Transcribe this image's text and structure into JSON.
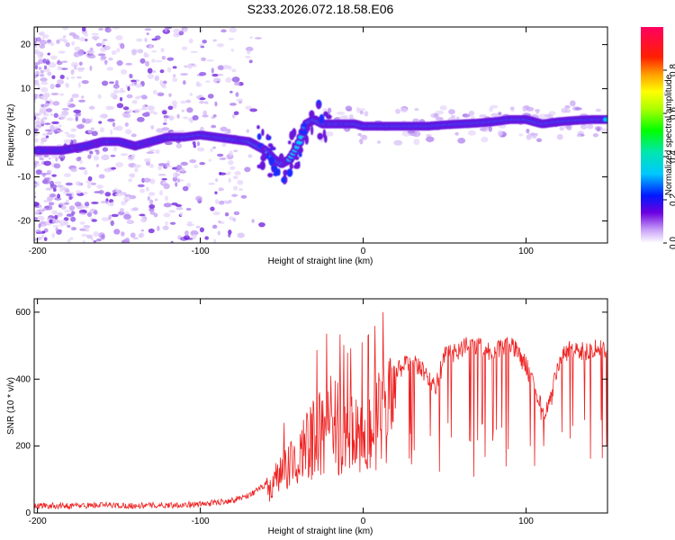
{
  "title": "S233.2026.072.18.58.E06",
  "chart_data": [
    {
      "type": "heatmap",
      "title": "S233.2026.072.18.58.E06",
      "xlabel": "Height of straight line (km)",
      "ylabel": "Frequency (Hz)",
      "xlim": [
        -202,
        150
      ],
      "ylim": [
        -25,
        24
      ],
      "xticks": [
        -200,
        -100,
        0,
        100
      ],
      "yticks": [
        -20,
        -10,
        0,
        10,
        20
      ],
      "colorbar": {
        "label": "Normalized spectral amplitude",
        "range": [
          0,
          1
        ],
        "ticks": [
          0.0,
          0.2,
          0.4,
          0.6,
          0.8
        ]
      },
      "ridge": {
        "x": [
          -200,
          -185,
          -170,
          -160,
          -150,
          -140,
          -130,
          -120,
          -110,
          -100,
          -90,
          -80,
          -70,
          -65,
          -60,
          -55,
          -50,
          -45,
          -40,
          -35,
          -30,
          -25,
          -20,
          -15,
          -10,
          -5,
          0,
          10,
          20,
          30,
          40,
          50,
          60,
          70,
          80,
          90,
          100,
          110,
          120,
          130,
          140,
          150
        ],
        "y": [
          -4,
          -4,
          -3,
          -2,
          -2,
          -3,
          -2,
          -1,
          -1,
          -0.5,
          -1,
          -1.5,
          -2,
          -3,
          -4,
          -6,
          -7,
          -6,
          -3,
          2,
          3,
          2,
          2,
          2,
          2,
          2,
          1.5,
          1.5,
          1.5,
          1.5,
          1.5,
          1.8,
          2,
          2.2,
          2.5,
          3,
          3,
          2,
          2.5,
          2.8,
          3,
          3
        ]
      }
    },
    {
      "type": "line",
      "xlabel": "Height of straight line (km)",
      "ylabel": "SNR (10 * v/v)",
      "xlim": [
        -202,
        150
      ],
      "ylim": [
        0,
        640
      ],
      "xticks": [
        -200,
        -100,
        0,
        100
      ],
      "yticks": [
        0,
        200,
        400,
        600
      ],
      "series": [
        {
          "name": "SNR",
          "color": "#ee2222",
          "x": [
            -202,
            -180,
            -160,
            -140,
            -120,
            -100,
            -90,
            -80,
            -70,
            -60,
            -55,
            -50,
            -45,
            -40,
            -35,
            -30,
            -25,
            -20,
            -15,
            -10,
            -5,
            0,
            5,
            10,
            15,
            20,
            25,
            30,
            35,
            40,
            45,
            50,
            55,
            60,
            65,
            70,
            75,
            80,
            85,
            90,
            95,
            100,
            105,
            110,
            115,
            120,
            125,
            130,
            135,
            140,
            145,
            150
          ],
          "values": [
            18,
            18,
            20,
            18,
            20,
            22,
            28,
            35,
            50,
            80,
            110,
            150,
            180,
            200,
            250,
            280,
            300,
            330,
            320,
            280,
            300,
            300,
            320,
            340,
            370,
            420,
            440,
            450,
            430,
            400,
            380,
            470,
            480,
            490,
            500,
            500,
            490,
            480,
            490,
            500,
            480,
            440,
            380,
            300,
            330,
            450,
            480,
            490,
            480,
            490,
            500,
            480
          ]
        }
      ]
    }
  ]
}
